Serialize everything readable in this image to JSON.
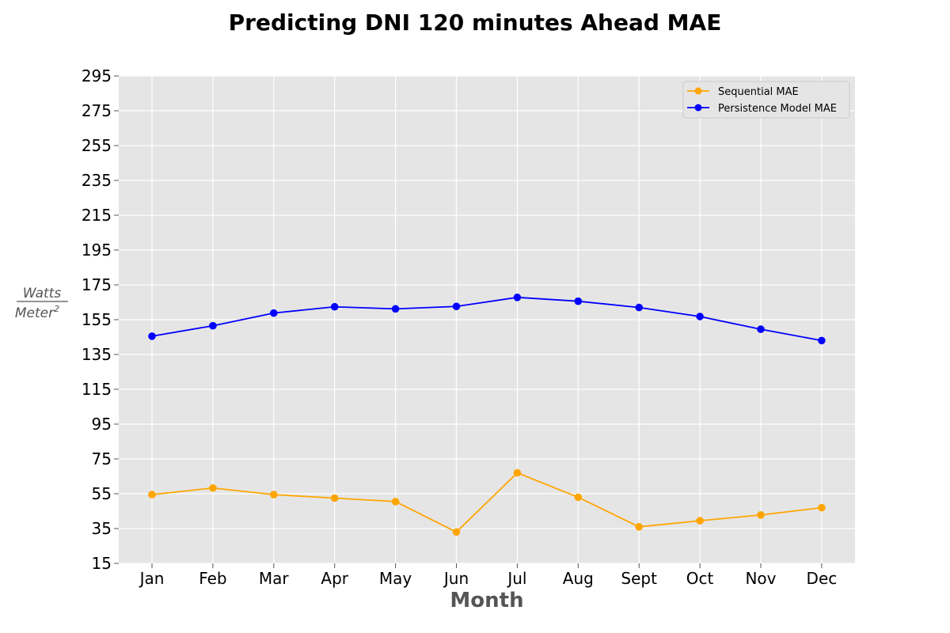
{
  "chart_data": {
    "type": "line",
    "title": "Predicting DNI 120 minutes Ahead MAE",
    "xlabel": "Month",
    "ylabel": {
      "numerator": "Watts",
      "denominator": "Meter",
      "denominator_superscript": "2"
    },
    "categories": [
      "Jan",
      "Feb",
      "Mar",
      "Apr",
      "May",
      "Jun",
      "Jul",
      "Aug",
      "Sept",
      "Oct",
      "Nov",
      "Dec"
    ],
    "ylim": [
      15,
      295
    ],
    "yticks": [
      15,
      35,
      55,
      75,
      95,
      115,
      135,
      155,
      175,
      195,
      215,
      235,
      255,
      275,
      295
    ],
    "grid": true,
    "legend_position": "top-right",
    "series": [
      {
        "name": "Sequential MAE",
        "color": "#FFA500",
        "values": [
          54.5,
          58.3,
          54.5,
          52.5,
          50.5,
          33.0,
          67.0,
          53.0,
          36.0,
          39.5,
          42.8,
          47.0
        ]
      },
      {
        "name": "Persistence Model MAE",
        "color": "#0000FF",
        "values": [
          145.5,
          151.5,
          158.8,
          162.4,
          161.2,
          162.6,
          167.8,
          165.6,
          162.0,
          156.8,
          149.5,
          143.0
        ]
      }
    ]
  }
}
